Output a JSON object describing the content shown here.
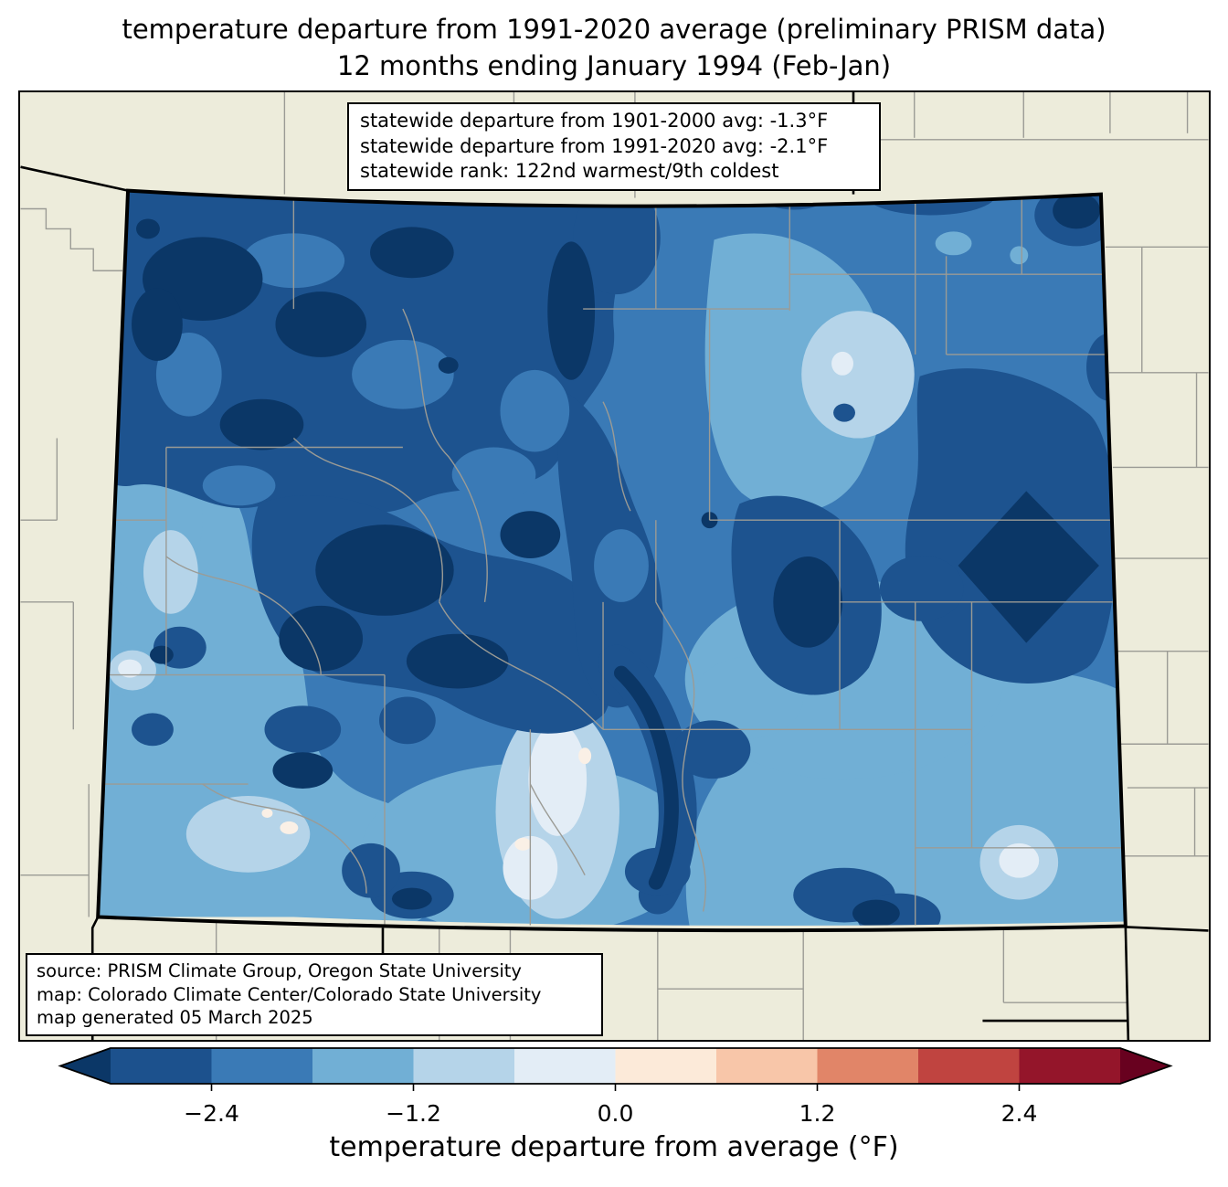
{
  "figure": {
    "title_line1": "temperature departure from 1991-2020 average (preliminary PRISM data)",
    "title_line2": "12 months ending January 1994 (Feb-Jan)"
  },
  "stats_box": {
    "line1": "statewide departure from 1901-2000 avg: -1.3°F",
    "line2": "statewide departure from 1991-2020 avg: -2.1°F",
    "line3": "statewide rank: 122nd warmest/9th coldest"
  },
  "source_box": {
    "line1": "source: PRISM Climate Group, Oregon State University",
    "line2": "map: Colorado Climate Center/Colorado State University",
    "line3": "map generated 05 March 2025"
  },
  "colorbar": {
    "label": "temperature departure from average (°F)",
    "tick_labels": [
      "−2.4",
      "−1.2",
      "0.0",
      "1.2",
      "2.4"
    ],
    "tick_values": [
      -2.4,
      -1.2,
      0.0,
      1.2,
      2.4
    ],
    "vmin": -3.0,
    "vmax": 3.0,
    "under_color": "#0b3767",
    "over_color": "#68011f",
    "segment_colors": [
      "#1c518d",
      "#3a7ab6",
      "#71afd5",
      "#b5d4e9",
      "#e3edf6",
      "#fcead9",
      "#f8c6a9",
      "#e18568",
      "#c04440",
      "#94152a"
    ]
  },
  "map": {
    "region": "Colorado",
    "background_color": "#edecdb",
    "county_line_color": "#9b9b95",
    "state_border_color": "#000000",
    "palette": {
      "navy": "#0b3767",
      "dark": "#1d538f",
      "base": "#3a7ab6",
      "light": "#71afd5",
      "pale": "#b5d4e9",
      "vpale": "#e3edf6",
      "white": "#faf0e6",
      "peach": "#f8c6a9",
      "orange": "#ec9468"
    }
  },
  "chart_data": {
    "type": "heatmap",
    "title": "temperature departure from 1991-2020 average (preliminary PRISM data) — 12 months ending January 1994 (Feb-Jan)",
    "region": "Colorado",
    "units": "°F",
    "colorbar_label": "temperature departure from average (°F)",
    "scale_ticks": [
      -2.4,
      -1.2,
      0.0,
      1.2,
      2.4
    ],
    "scale_range": [
      -3.0,
      3.0
    ],
    "statewide_departure_from_1901_2000_avg_F": -1.3,
    "statewide_departure_from_1991_2020_avg_F": -2.1,
    "statewide_rank": "122nd warmest/9th coldest"
  }
}
